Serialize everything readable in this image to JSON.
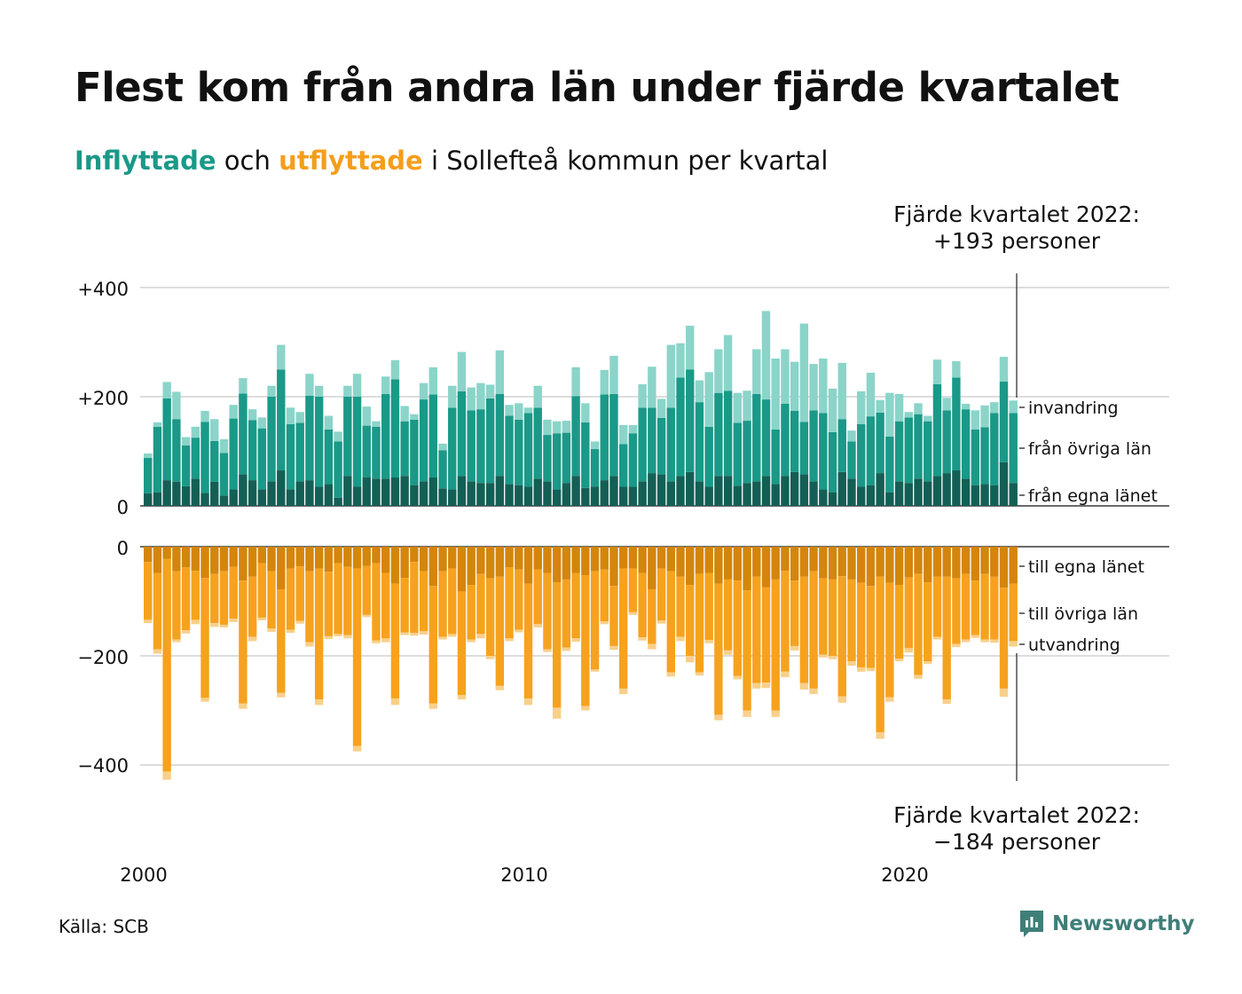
{
  "title": "Flest kom från andra län under fjärde kvartalet",
  "subtitle": {
    "in_word": "Inflyttade",
    "mid": "och",
    "out_word": "utflyttade",
    "rest": "i Sollefteå kommun per kvartal"
  },
  "annotation_top": {
    "line1": "Fjärde kvartalet 2022:",
    "line2": "+193 personer"
  },
  "annotation_bottom": {
    "line1": "Fjärde kvartalet 2022:",
    "line2": "−184 personer"
  },
  "source": "Källa: SCB",
  "logo": "Newsworthy",
  "colors": {
    "in_own": "#145f55",
    "in_other": "#1a9988",
    "in_immigration": "#8bd4c9",
    "out_own": "#d4850c",
    "out_other": "#f6a21e",
    "out_emigration": "#f8d08b",
    "grid": "#dddddd"
  },
  "chart_data": {
    "type": "bar",
    "stacked": true,
    "x_start": "2000 Q1",
    "x_ticks": [
      "2000",
      "2010",
      "2020"
    ],
    "y_ticks_top": [
      "+400",
      "+200",
      "0"
    ],
    "y_ticks_bottom": [
      "0",
      "−200",
      "−400"
    ],
    "ylim_top": [
      0,
      400
    ],
    "ylim_bottom": [
      -400,
      0
    ],
    "segment_labels_in": [
      "invandring",
      "från övriga län",
      "från egna länet"
    ],
    "segment_labels_out": [
      "till egna länet",
      "till övriga län",
      "utvandring"
    ],
    "series_in": {
      "fran_egna_lanet": [
        23,
        25,
        47,
        44,
        36,
        50,
        24,
        44,
        19,
        30,
        58,
        47,
        30,
        45,
        65,
        30,
        45,
        47,
        35,
        40,
        15,
        55,
        35,
        52,
        50,
        50,
        52,
        55,
        38,
        45,
        52,
        32,
        30,
        55,
        45,
        42,
        42,
        55,
        40,
        38,
        35,
        50,
        45,
        30,
        42,
        55,
        33,
        35,
        47,
        55,
        35,
        35,
        45,
        60,
        58,
        45,
        55,
        62,
        45,
        35,
        55,
        55,
        37,
        42,
        45,
        55,
        40,
        55,
        62,
        58,
        45,
        30,
        25,
        62,
        50,
        35,
        38,
        60,
        25,
        45,
        42,
        50,
        45,
        55,
        60,
        65,
        50,
        38,
        40,
        38,
        80,
        42
      ],
      "fran_ovriga_lan": [
        65,
        120,
        150,
        115,
        75,
        75,
        130,
        75,
        78,
        130,
        148,
        110,
        112,
        155,
        185,
        120,
        107,
        155,
        165,
        100,
        103,
        145,
        165,
        95,
        95,
        155,
        180,
        100,
        120,
        150,
        152,
        70,
        150,
        155,
        130,
        135,
        155,
        150,
        125,
        120,
        135,
        130,
        85,
        103,
        92,
        146,
        120,
        69,
        157,
        150,
        78,
        98,
        135,
        120,
        103,
        135,
        180,
        188,
        145,
        110,
        152,
        156,
        115,
        114,
        160,
        140,
        100,
        132,
        112,
        96,
        130,
        140,
        110,
        97,
        68,
        115,
        126,
        111,
        102,
        110,
        120,
        118,
        110,
        168,
        115,
        170,
        127,
        102,
        104,
        132,
        148,
        128
      ],
      "invandring": [
        8,
        8,
        30,
        50,
        15,
        20,
        20,
        40,
        25,
        25,
        28,
        20,
        20,
        20,
        45,
        30,
        20,
        40,
        20,
        25,
        18,
        20,
        42,
        35,
        10,
        32,
        35,
        28,
        10,
        30,
        50,
        12,
        40,
        72,
        42,
        48,
        25,
        80,
        20,
        30,
        10,
        40,
        28,
        22,
        22,
        53,
        35,
        14,
        45,
        70,
        35,
        15,
        43,
        75,
        35,
        115,
        63,
        80,
        40,
        100,
        80,
        102,
        55,
        55,
        82,
        162,
        130,
        100,
        90,
        180,
        85,
        100,
        80,
        103,
        20,
        60,
        80,
        23,
        80,
        50,
        10,
        20,
        10,
        45,
        23,
        30,
        10,
        35,
        40,
        20,
        45,
        23
      ]
    },
    "series_out": {
      "till_egna_lanet": [
        28,
        48,
        22,
        45,
        38,
        44,
        57,
        50,
        45,
        37,
        62,
        55,
        30,
        45,
        78,
        40,
        36,
        45,
        40,
        46,
        30,
        37,
        40,
        35,
        30,
        48,
        68,
        57,
        28,
        45,
        72,
        45,
        40,
        82,
        70,
        50,
        58,
        55,
        38,
        42,
        68,
        42,
        48,
        65,
        60,
        48,
        52,
        45,
        42,
        72,
        40,
        40,
        48,
        78,
        40,
        45,
        55,
        70,
        50,
        48,
        68,
        60,
        62,
        80,
        55,
        74,
        60,
        44,
        62,
        55,
        45,
        58,
        60,
        54,
        60,
        66,
        72,
        55,
        66,
        70,
        56,
        50,
        65,
        55,
        55,
        58,
        50,
        62,
        50,
        55,
        75,
        68
      ],
      "till_ovriga_lan": [
        106,
        140,
        390,
        125,
        115,
        90,
        220,
        90,
        98,
        95,
        225,
        110,
        100,
        105,
        190,
        112,
        100,
        130,
        240,
        118,
        130,
        125,
        325,
        90,
        142,
        120,
        210,
        100,
        130,
        110,
        215,
        120,
        120,
        190,
        100,
        110,
        142,
        200,
        130,
        110,
        210,
        100,
        140,
        230,
        125,
        120,
        240,
        180,
        95,
        110,
        220,
        80,
        118,
        100,
        95,
        185,
        110,
        130,
        180,
        123,
        240,
        130,
        175,
        220,
        195,
        175,
        240,
        185,
        120,
        195,
        215,
        140,
        140,
        220,
        150,
        155,
        150,
        285,
        210,
        135,
        130,
        185,
        145,
        110,
        225,
        120,
        120,
        100,
        120,
        115,
        185,
        105
      ],
      "utvandring": [
        6,
        8,
        15,
        5,
        6,
        8,
        7,
        7,
        5,
        6,
        10,
        8,
        5,
        6,
        8,
        6,
        5,
        8,
        10,
        5,
        4,
        6,
        10,
        4,
        5,
        7,
        12,
        5,
        5,
        6,
        10,
        5,
        5,
        8,
        5,
        8,
        6,
        8,
        5,
        5,
        12,
        6,
        5,
        20,
        6,
        6,
        8,
        4,
        5,
        7,
        10,
        5,
        6,
        10,
        6,
        8,
        8,
        12,
        6,
        6,
        10,
        8,
        6,
        12,
        10,
        10,
        12,
        10,
        8,
        12,
        10,
        5,
        6,
        12,
        8,
        8,
        6,
        12,
        8,
        5,
        8,
        7,
        5,
        5,
        8,
        6,
        5,
        5,
        5,
        6,
        15,
        10
      ]
    }
  }
}
